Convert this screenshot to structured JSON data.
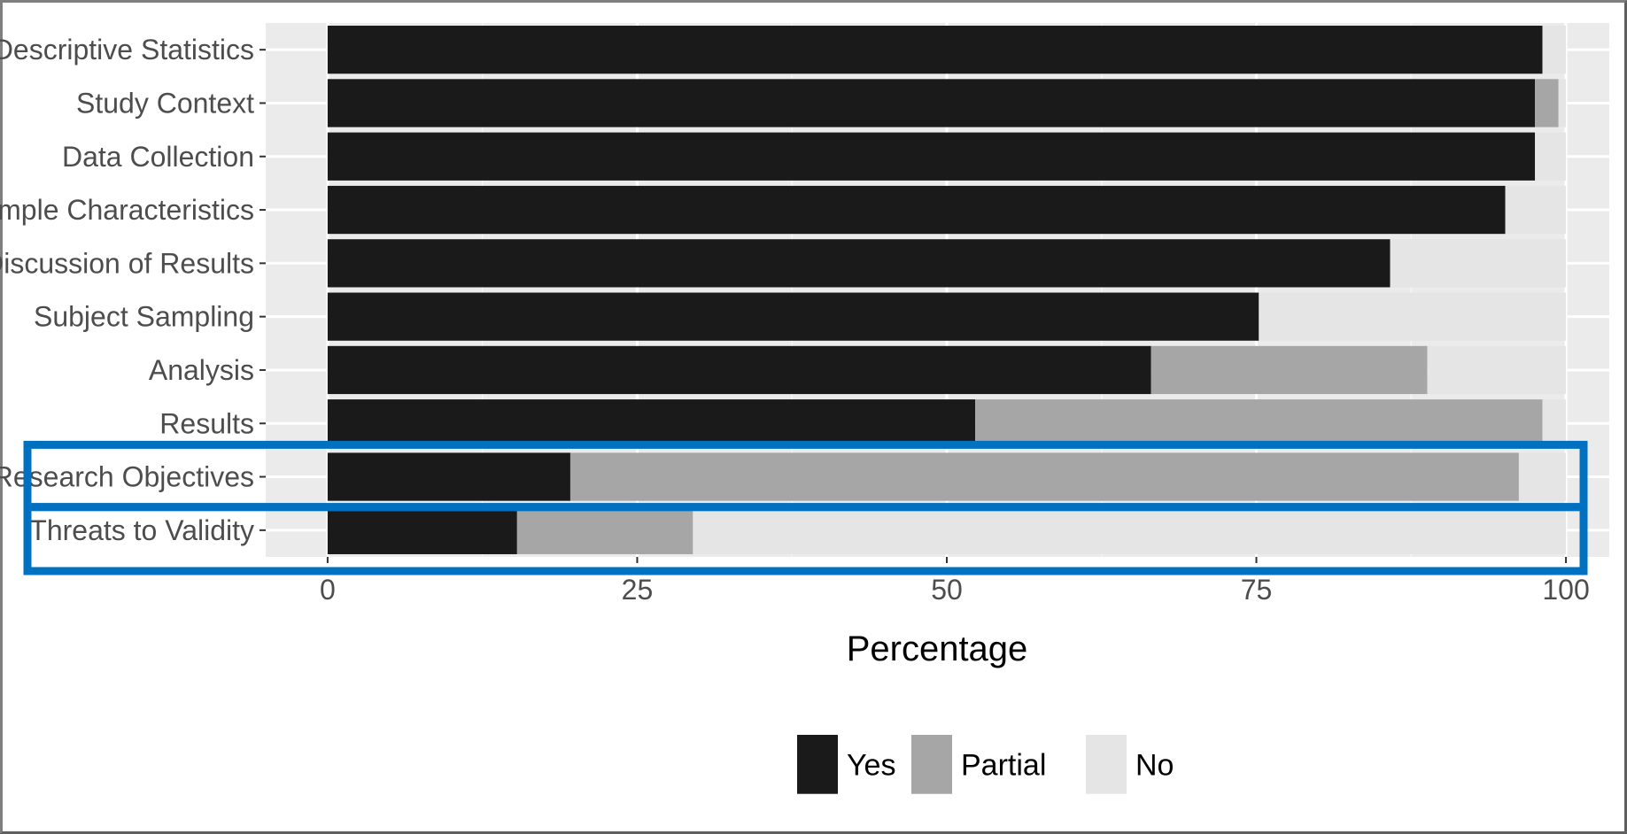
{
  "chart_data": {
    "type": "bar",
    "orientation": "horizontal",
    "stacked": true,
    "categories": [
      "Descriptive Statistics",
      "Study Context",
      "Data Collection",
      "Sample Characteristics",
      "Discussion of Results",
      "Subject Sampling",
      "Analysis",
      "Results",
      "Research Objectives",
      "Threats to Validity"
    ],
    "series": [
      {
        "name": "Yes",
        "color": "#1a1a1a",
        "values": [
          98.1,
          97.5,
          97.5,
          95.1,
          85.8,
          75.2,
          66.5,
          52.3,
          19.6,
          15.3
        ]
      },
      {
        "name": "Partial",
        "color": "#a6a6a6",
        "values": [
          0,
          1.9,
          0,
          0,
          0,
          0,
          22.3,
          45.8,
          76.6,
          14.2
        ]
      },
      {
        "name": "No",
        "color": "#e5e5e5",
        "values": [
          1.9,
          0.6,
          2.5,
          4.9,
          14.2,
          24.8,
          11.2,
          1.9,
          3.8,
          70.5
        ]
      }
    ],
    "title": "",
    "xlabel": "Percentage",
    "ylabel": "",
    "xlim": [
      -5,
      103.5
    ],
    "xticks": [
      "0",
      "25",
      "50",
      "75",
      "100"
    ],
    "grid": true,
    "legend_position": "bottom",
    "highlight": {
      "color": "#0070c0",
      "categories": [
        "Research Objectives",
        "Threats to Validity"
      ]
    }
  }
}
